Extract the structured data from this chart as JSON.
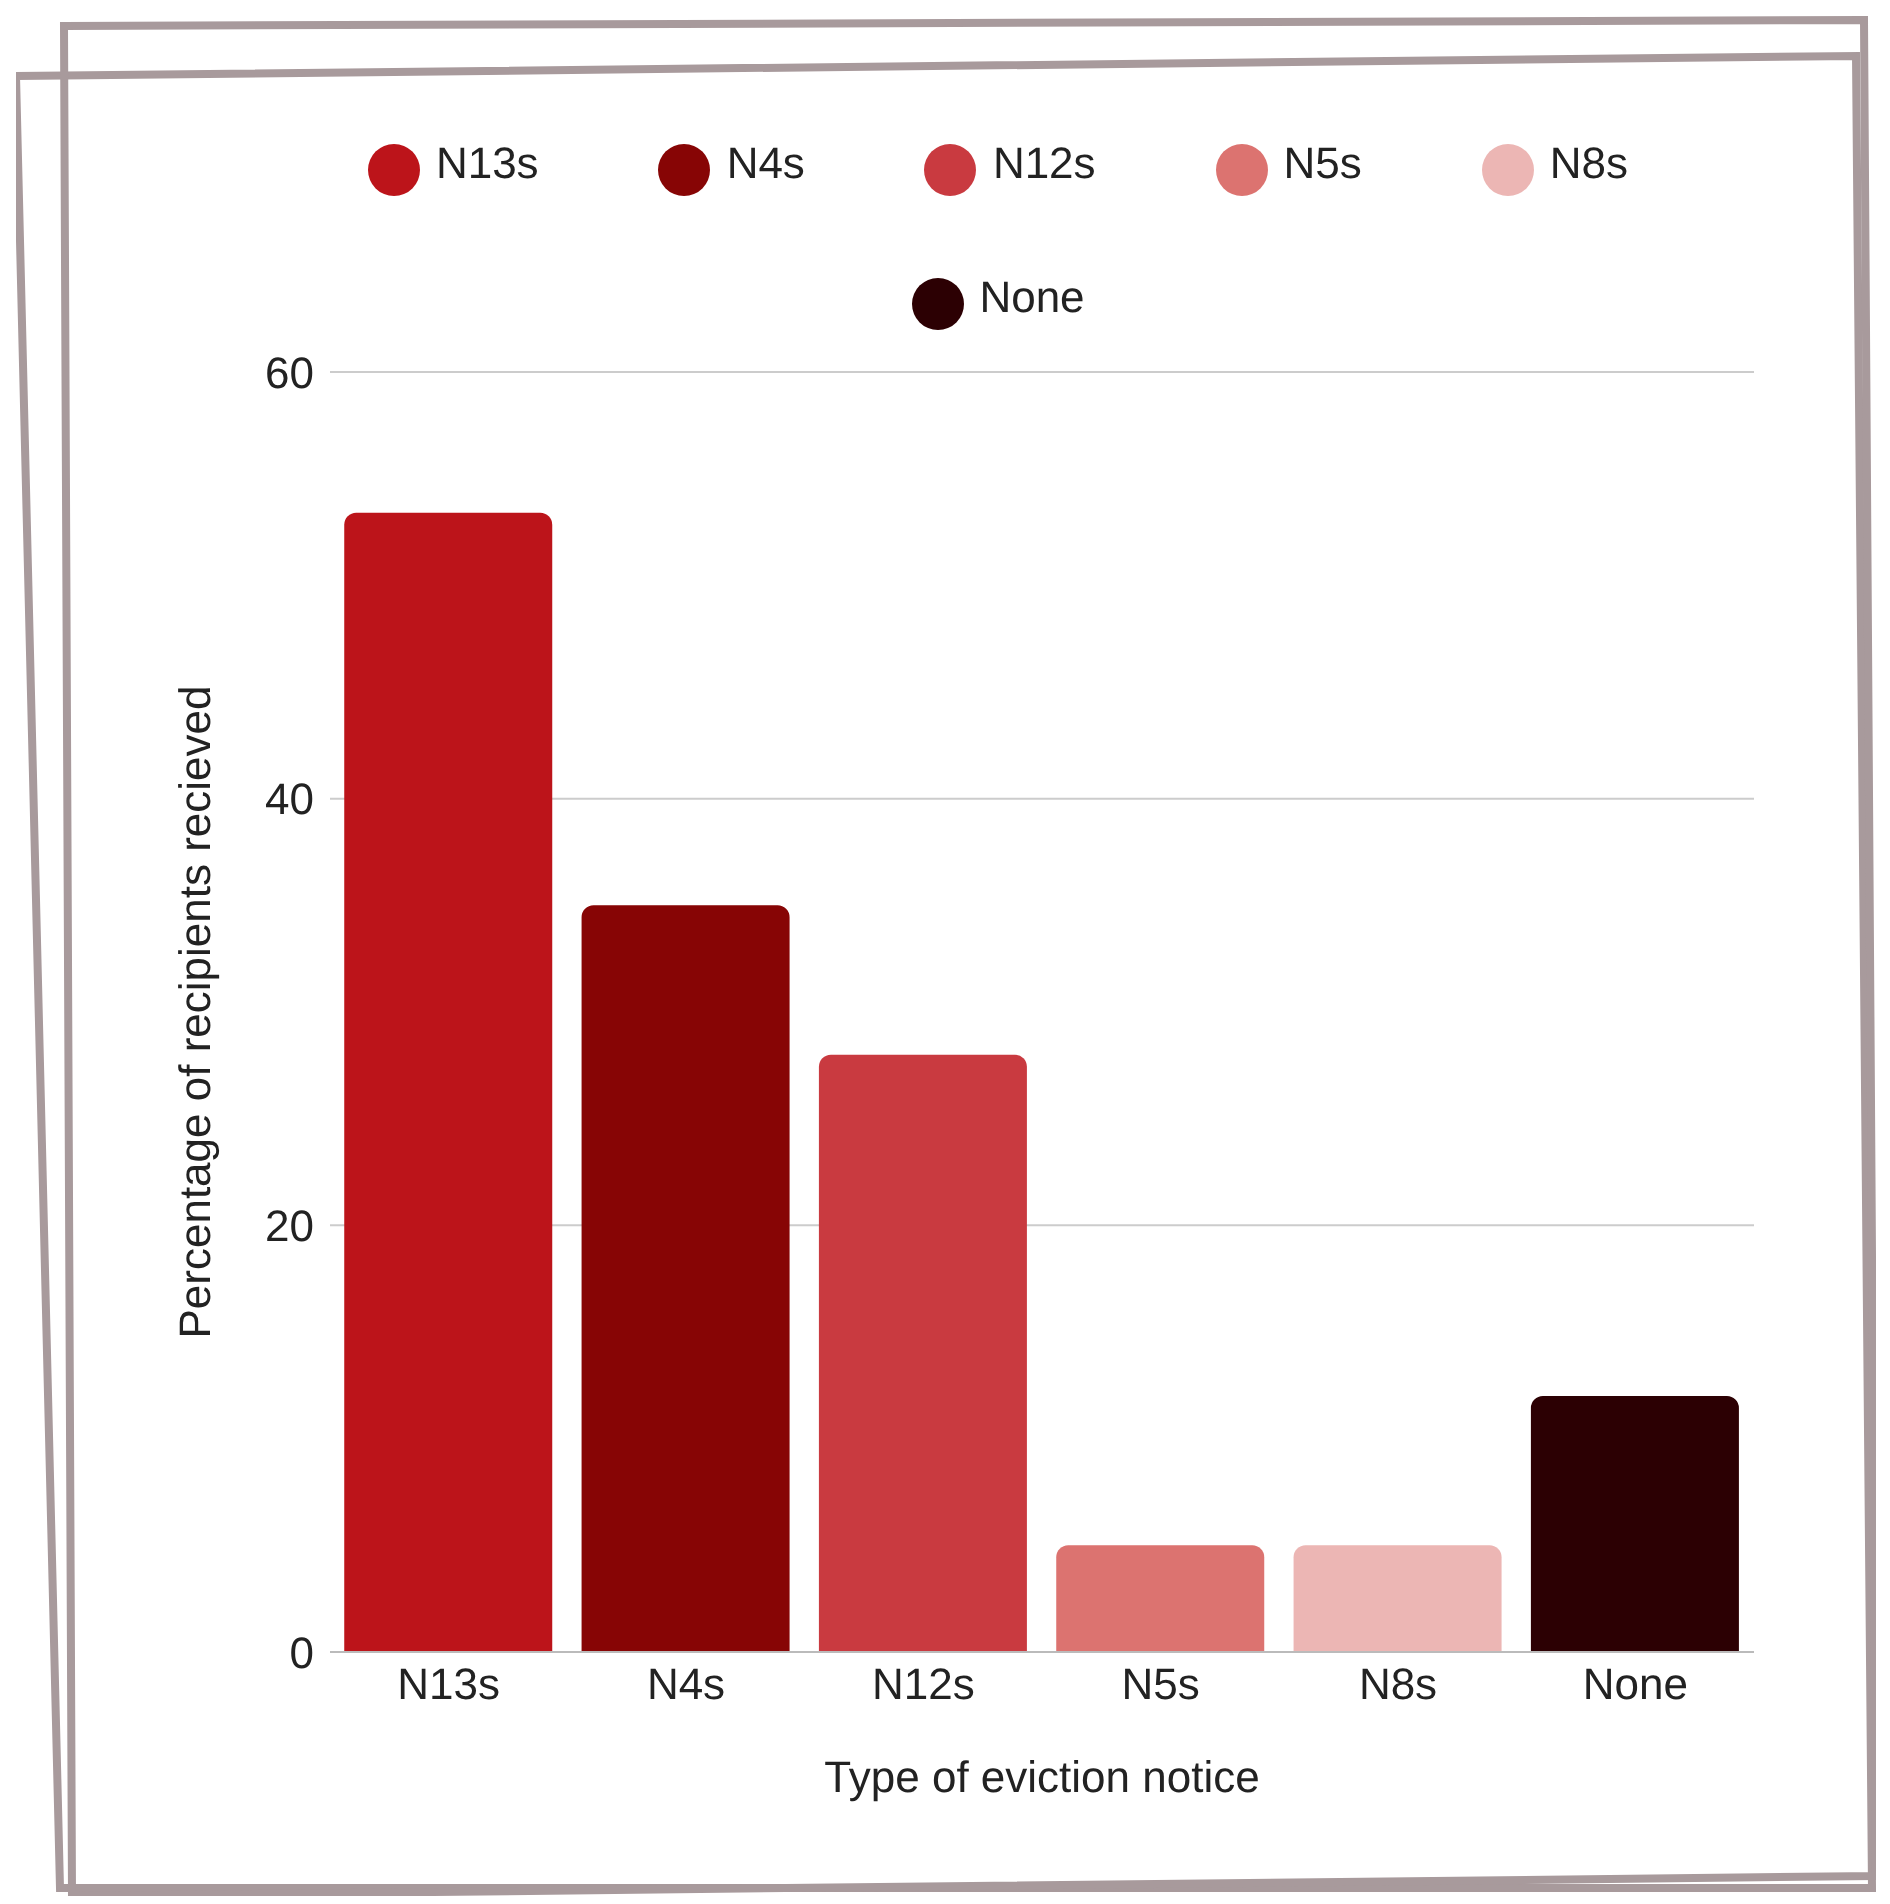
{
  "chart_data": {
    "type": "bar",
    "stacked": true,
    "xlabel": "Type of eviction notice",
    "ylabel": "Percentage of recipients recieved",
    "categories": [
      "N13s",
      "N4s",
      "N12s",
      "N5s",
      "N8s",
      "None"
    ],
    "series": [
      {
        "name": "N13s",
        "color": "#bc141a",
        "values": [
          53.4,
          null,
          null,
          null,
          null,
          null
        ]
      },
      {
        "name": "N4s",
        "color": "#870505",
        "values": [
          null,
          35,
          null,
          null,
          null,
          null
        ]
      },
      {
        "name": "N12s",
        "color": "#c93a40",
        "values": [
          null,
          null,
          28,
          null,
          null,
          null
        ]
      },
      {
        "name": "N5s",
        "color": "#dc7370",
        "values": [
          null,
          null,
          null,
          5,
          null,
          null
        ]
      },
      {
        "name": "N8s",
        "color": "#ecb6b4",
        "values": [
          null,
          null,
          null,
          null,
          5,
          null
        ]
      },
      {
        "name": "None",
        "color": "#2c0003",
        "values": [
          null,
          null,
          null,
          null,
          null,
          12
        ]
      }
    ],
    "ylim": [
      0,
      60
    ],
    "yticks": [
      0,
      20,
      40,
      60
    ],
    "grid": "y",
    "legend": "top"
  }
}
